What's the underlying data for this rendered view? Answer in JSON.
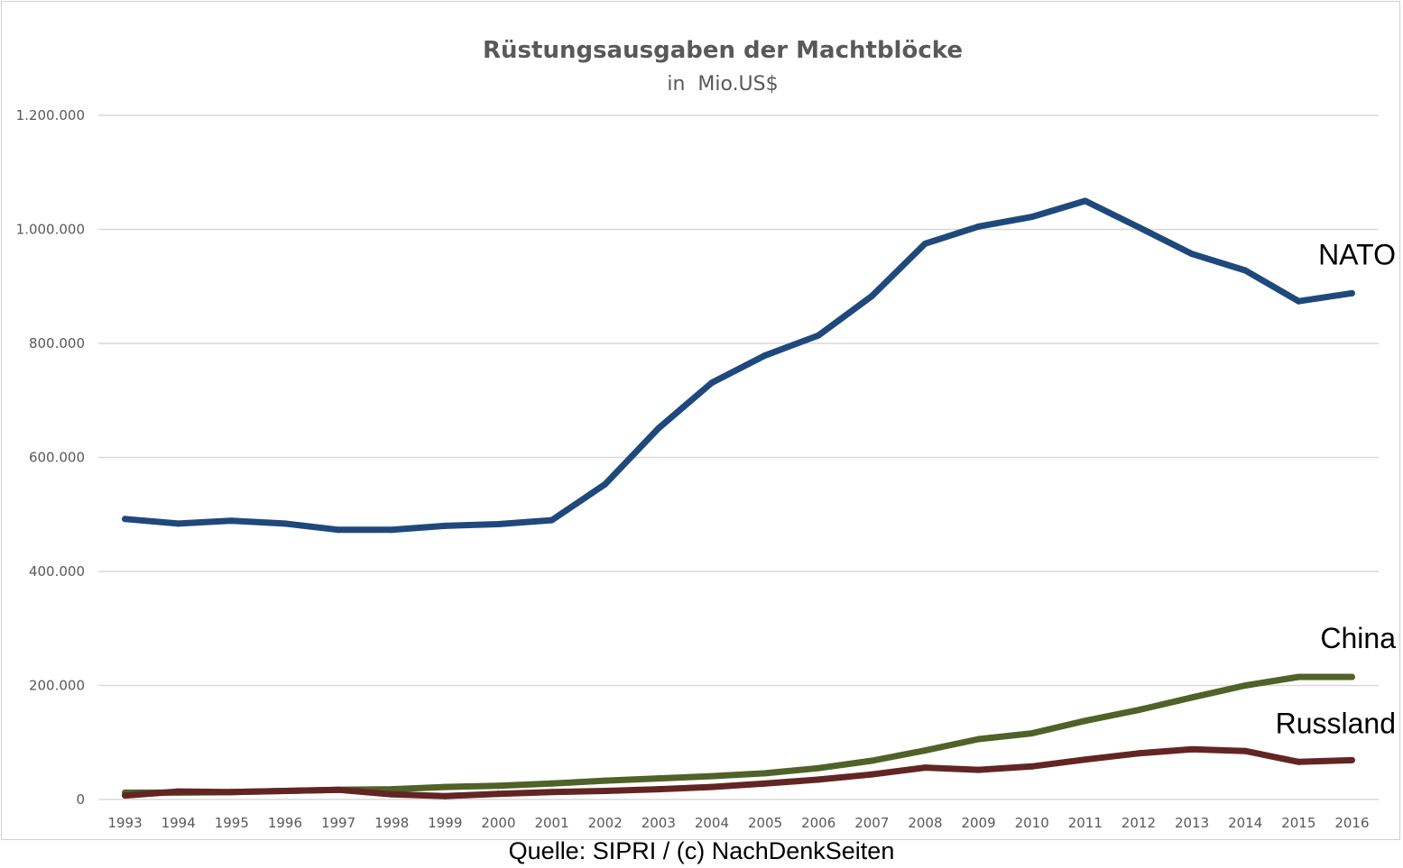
{
  "chart_data": {
    "type": "line",
    "title": "Rüstungsausgaben der Machtblöcke",
    "subtitle": "in  Mio.US$",
    "xlabel": "",
    "ylabel": "",
    "categories": [
      "1993",
      "1994",
      "1995",
      "1996",
      "1997",
      "1998",
      "1999",
      "2000",
      "2001",
      "2002",
      "2003",
      "2004",
      "2005",
      "2006",
      "2007",
      "2008",
      "2009",
      "2010",
      "2011",
      "2012",
      "2013",
      "2014",
      "2015",
      "2016"
    ],
    "ylim": [
      0,
      1200000
    ],
    "yticks": [
      0,
      200000,
      400000,
      600000,
      800000,
      1000000,
      1200000
    ],
    "ytick_labels": [
      "0",
      "200.000",
      "400.000",
      "600.000",
      "800.000",
      "1.000.000",
      "1.200.000"
    ],
    "grid": true,
    "legend": "none",
    "series": [
      {
        "name": "NATO",
        "color": "#1f497d",
        "values": [
          492000,
          484000,
          489000,
          484000,
          473000,
          473000,
          480000,
          483000,
          490000,
          553000,
          651000,
          731000,
          779000,
          814000,
          883000,
          975000,
          1005000,
          1022000,
          1050000,
          1004000,
          957000,
          928000,
          874000,
          888000
        ]
      },
      {
        "name": "China",
        "color": "#4f6228",
        "values": [
          12000,
          12000,
          13000,
          15000,
          17000,
          18000,
          22000,
          24000,
          28000,
          33000,
          37000,
          41000,
          46000,
          55000,
          68000,
          86000,
          106000,
          116000,
          138000,
          157000,
          179000,
          200000,
          215000,
          215000
        ]
      },
      {
        "name": "Russland",
        "color": "#632523",
        "values": [
          7000,
          14000,
          13000,
          15000,
          17000,
          9000,
          6000,
          10000,
          13000,
          15000,
          18000,
          22000,
          28000,
          35000,
          44000,
          56000,
          52000,
          58000,
          70000,
          81000,
          88000,
          85000,
          66000,
          69000
        ]
      }
    ]
  },
  "footer": {
    "source": "Quelle: SIPRI / (c) NachDenkSeiten"
  }
}
